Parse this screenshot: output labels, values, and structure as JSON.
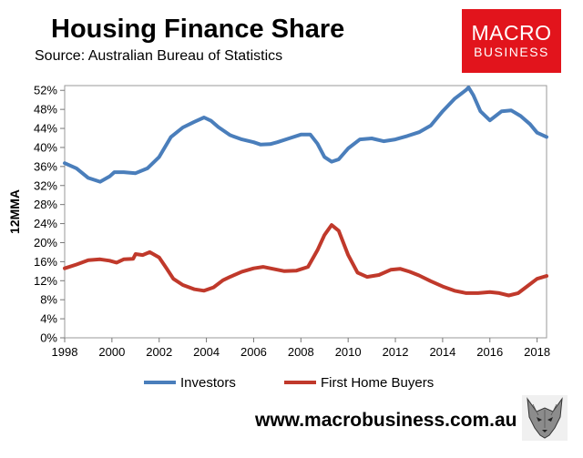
{
  "header": {
    "title": "Housing Finance Share",
    "subtitle": "Source: Australian Bureau of Statistics"
  },
  "logo": {
    "line1": "MACRO",
    "line2": "BUSINESS",
    "color": "#e2141c"
  },
  "footer": {
    "url": "www.macrobusiness.com.au",
    "mascot_icon": "wolf-head-icon"
  },
  "chart_data": {
    "type": "line",
    "ylabel": "12MMA",
    "xlabel": "",
    "xlim": [
      1998,
      2018.4
    ],
    "ylim": [
      0,
      53
    ],
    "x_ticks": [
      1998,
      2000,
      2002,
      2004,
      2006,
      2008,
      2010,
      2012,
      2014,
      2016,
      2018
    ],
    "y_ticks": [
      0,
      4,
      8,
      12,
      16,
      20,
      24,
      28,
      32,
      36,
      40,
      44,
      48,
      52
    ],
    "y_tick_labels": [
      "0%",
      "4%",
      "8%",
      "12%",
      "16%",
      "20%",
      "24%",
      "28%",
      "32%",
      "36%",
      "40%",
      "44%",
      "48%",
      "52%"
    ],
    "grid": false,
    "legend_position": "bottom",
    "series": [
      {
        "name": "Investors",
        "color": "#4a7ebb",
        "points": [
          [
            1998.0,
            36.7
          ],
          [
            1998.5,
            35.6
          ],
          [
            1999.0,
            33.6
          ],
          [
            1999.5,
            32.8
          ],
          [
            1999.9,
            33.9
          ],
          [
            2000.1,
            34.8
          ],
          [
            2000.5,
            34.8
          ],
          [
            2001.0,
            34.6
          ],
          [
            2001.5,
            35.6
          ],
          [
            2002.0,
            38.0
          ],
          [
            2002.5,
            42.2
          ],
          [
            2003.0,
            44.2
          ],
          [
            2003.5,
            45.4
          ],
          [
            2003.9,
            46.3
          ],
          [
            2004.2,
            45.6
          ],
          [
            2004.5,
            44.3
          ],
          [
            2005.0,
            42.6
          ],
          [
            2005.5,
            41.7
          ],
          [
            2006.0,
            41.1
          ],
          [
            2006.3,
            40.6
          ],
          [
            2006.7,
            40.7
          ],
          [
            2007.0,
            41.1
          ],
          [
            2007.5,
            41.9
          ],
          [
            2008.0,
            42.7
          ],
          [
            2008.4,
            42.7
          ],
          [
            2008.7,
            40.8
          ],
          [
            2009.0,
            38.0
          ],
          [
            2009.3,
            37.0
          ],
          [
            2009.6,
            37.5
          ],
          [
            2010.0,
            39.8
          ],
          [
            2010.5,
            41.7
          ],
          [
            2011.0,
            41.9
          ],
          [
            2011.5,
            41.3
          ],
          [
            2012.0,
            41.7
          ],
          [
            2012.5,
            42.4
          ],
          [
            2013.0,
            43.2
          ],
          [
            2013.5,
            44.6
          ],
          [
            2014.0,
            47.6
          ],
          [
            2014.5,
            50.2
          ],
          [
            2015.0,
            52.1
          ],
          [
            2015.1,
            52.6
          ],
          [
            2015.3,
            51.0
          ],
          [
            2015.6,
            47.6
          ],
          [
            2016.0,
            45.7
          ],
          [
            2016.5,
            47.6
          ],
          [
            2016.9,
            47.8
          ],
          [
            2017.3,
            46.6
          ],
          [
            2017.7,
            44.9
          ],
          [
            2018.0,
            43.1
          ],
          [
            2018.4,
            42.2
          ]
        ]
      },
      {
        "name": "First Home Buyers",
        "color": "#c0392b",
        "points": [
          [
            1998.0,
            14.6
          ],
          [
            1998.5,
            15.4
          ],
          [
            1999.0,
            16.3
          ],
          [
            1999.5,
            16.5
          ],
          [
            1999.9,
            16.2
          ],
          [
            2000.2,
            15.8
          ],
          [
            2000.5,
            16.5
          ],
          [
            2000.9,
            16.6
          ],
          [
            2001.0,
            17.6
          ],
          [
            2001.3,
            17.4
          ],
          [
            2001.6,
            18.0
          ],
          [
            2002.0,
            16.9
          ],
          [
            2002.3,
            14.7
          ],
          [
            2002.6,
            12.4
          ],
          [
            2003.0,
            11.1
          ],
          [
            2003.5,
            10.2
          ],
          [
            2003.9,
            9.9
          ],
          [
            2004.3,
            10.6
          ],
          [
            2004.7,
            12.1
          ],
          [
            2005.0,
            12.8
          ],
          [
            2005.5,
            13.9
          ],
          [
            2006.0,
            14.6
          ],
          [
            2006.4,
            14.9
          ],
          [
            2006.8,
            14.5
          ],
          [
            2007.3,
            14.0
          ],
          [
            2007.8,
            14.1
          ],
          [
            2008.3,
            14.9
          ],
          [
            2008.7,
            18.4
          ],
          [
            2009.0,
            21.6
          ],
          [
            2009.3,
            23.7
          ],
          [
            2009.6,
            22.5
          ],
          [
            2010.0,
            17.4
          ],
          [
            2010.4,
            13.7
          ],
          [
            2010.8,
            12.8
          ],
          [
            2011.3,
            13.2
          ],
          [
            2011.8,
            14.3
          ],
          [
            2012.2,
            14.5
          ],
          [
            2012.6,
            13.9
          ],
          [
            2013.0,
            13.1
          ],
          [
            2013.5,
            11.9
          ],
          [
            2014.0,
            10.8
          ],
          [
            2014.5,
            9.9
          ],
          [
            2015.0,
            9.4
          ],
          [
            2015.5,
            9.4
          ],
          [
            2016.0,
            9.6
          ],
          [
            2016.4,
            9.4
          ],
          [
            2016.8,
            8.9
          ],
          [
            2017.2,
            9.4
          ],
          [
            2017.6,
            10.9
          ],
          [
            2018.0,
            12.4
          ],
          [
            2018.4,
            13.0
          ]
        ]
      }
    ]
  }
}
